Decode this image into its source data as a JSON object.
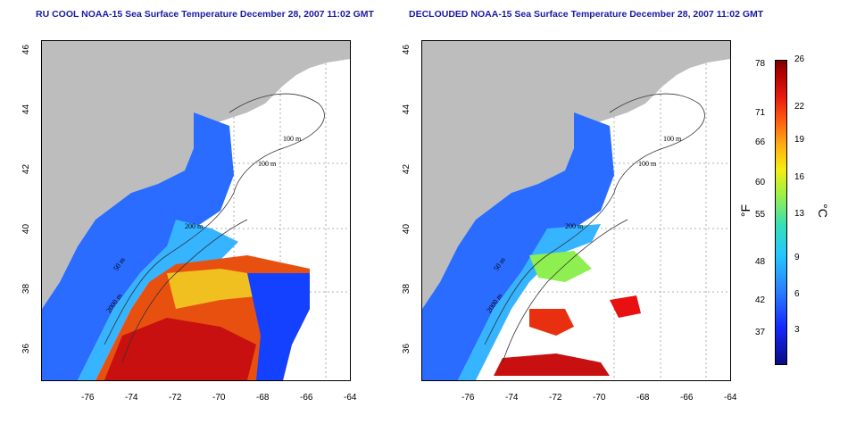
{
  "panels": [
    {
      "title": "RU COOL NOAA-15 Sea Surface Temperature December 28, 2007 11:02 GMT"
    },
    {
      "title": "DECLOUDED NOAA-15 Sea Surface Temperature December 28, 2007 11:02 GMT"
    }
  ],
  "axes": {
    "x_ticks": [
      "-76",
      "-74",
      "-72",
      "-70",
      "-68",
      "-66",
      "-64"
    ],
    "y_ticks": [
      "36",
      "38",
      "40",
      "42",
      "44",
      "46"
    ]
  },
  "contours": {
    "left": [
      "100 m",
      "100 m",
      "200 m",
      "50 m",
      "2000 m"
    ],
    "right": [
      "100 m",
      "100 m",
      "200 m",
      "50 m",
      "2000 m"
    ]
  },
  "colorbar": {
    "fahrenheit_label": "°F",
    "celsius_label": "°C",
    "fahrenheit_ticks": [
      "78",
      "71",
      "66",
      "60",
      "55",
      "48",
      "42",
      "37"
    ],
    "celsius_ticks": [
      "26",
      "22",
      "19",
      "16",
      "13",
      "9",
      "6",
      "3"
    ]
  },
  "colors": {
    "land": "#bdbdbd",
    "ocean_cold": "#1a3cff",
    "ocean_warm": "#e82010",
    "title": "#1a1aa6"
  }
}
